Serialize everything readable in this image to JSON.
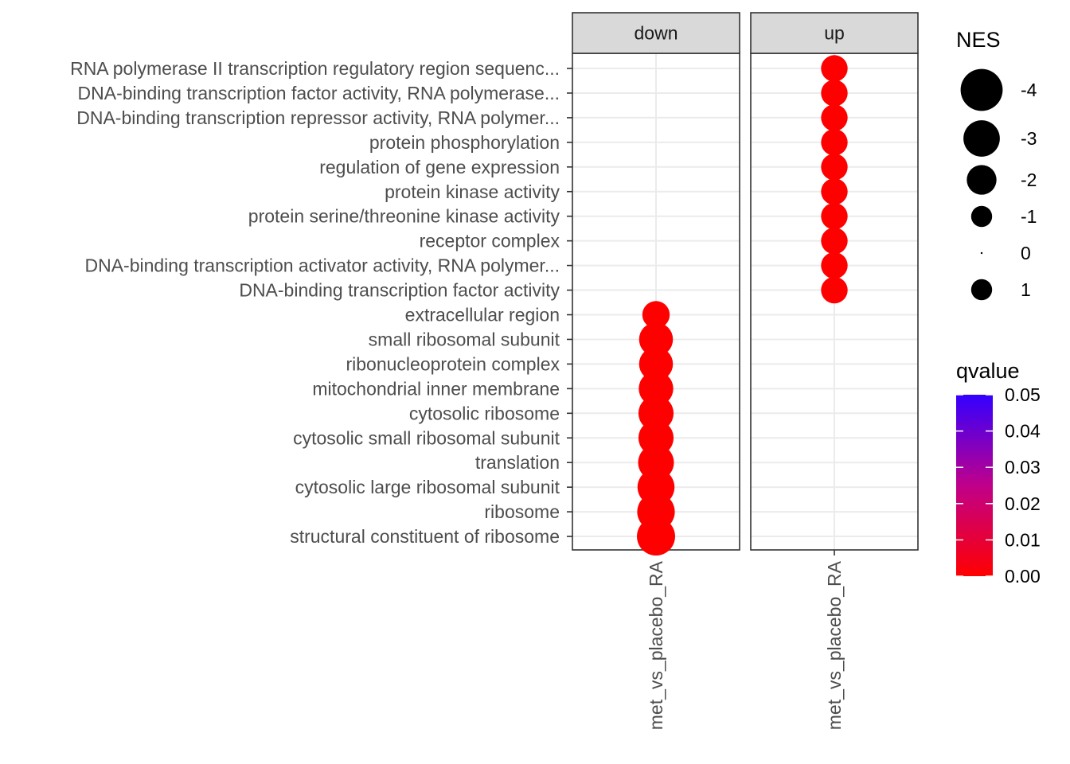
{
  "chart_data": {
    "type": "scatter",
    "facets": [
      "down",
      "up"
    ],
    "x_categories": [
      "met_vs_placebo_RA"
    ],
    "y_categories": [
      "RNA polymerase II transcription regulatory region sequenc...",
      "DNA-binding transcription factor activity, RNA polymerase...",
      "DNA-binding transcription repressor activity, RNA polymer...",
      "protein phosphorylation",
      "regulation of gene expression",
      "protein kinase activity",
      "protein serine/threonine kinase activity",
      "receptor complex",
      "DNA-binding transcription activator activity, RNA polymer...",
      "DNA-binding transcription factor activity",
      "extracellular region",
      "small ribosomal subunit",
      "ribonucleoprotein complex",
      "mitochondrial inner membrane",
      "cytosolic ribosome",
      "cytosolic small ribosomal subunit",
      "translation",
      "cytosolic large ribosomal subunit",
      "ribosome",
      "structural constituent of ribosome"
    ],
    "points": [
      {
        "facet": "up",
        "term": "RNA polymerase II transcription regulatory region sequenc...",
        "x": "met_vs_placebo_RA",
        "nes": 1.6,
        "qvalue": 0.0
      },
      {
        "facet": "up",
        "term": "DNA-binding transcription factor activity, RNA polymerase...",
        "x": "met_vs_placebo_RA",
        "nes": 1.6,
        "qvalue": 0.0
      },
      {
        "facet": "up",
        "term": "DNA-binding transcription repressor activity, RNA polymer...",
        "x": "met_vs_placebo_RA",
        "nes": 1.6,
        "qvalue": 0.0
      },
      {
        "facet": "up",
        "term": "protein phosphorylation",
        "x": "met_vs_placebo_RA",
        "nes": 1.6,
        "qvalue": 0.0
      },
      {
        "facet": "up",
        "term": "regulation of gene expression",
        "x": "met_vs_placebo_RA",
        "nes": 1.6,
        "qvalue": 0.0
      },
      {
        "facet": "up",
        "term": "protein kinase activity",
        "x": "met_vs_placebo_RA",
        "nes": 1.6,
        "qvalue": 0.0
      },
      {
        "facet": "up",
        "term": "protein serine/threonine kinase activity",
        "x": "met_vs_placebo_RA",
        "nes": 1.6,
        "qvalue": 0.0
      },
      {
        "facet": "up",
        "term": "receptor complex",
        "x": "met_vs_placebo_RA",
        "nes": 1.6,
        "qvalue": 0.0
      },
      {
        "facet": "up",
        "term": "DNA-binding transcription activator activity, RNA polymer...",
        "x": "met_vs_placebo_RA",
        "nes": 1.6,
        "qvalue": 0.0
      },
      {
        "facet": "up",
        "term": "DNA-binding transcription factor activity",
        "x": "met_vs_placebo_RA",
        "nes": 1.6,
        "qvalue": 0.0
      },
      {
        "facet": "down",
        "term": "extracellular region",
        "x": "met_vs_placebo_RA",
        "nes": -1.7,
        "qvalue": 0.0
      },
      {
        "facet": "down",
        "term": "small ribosomal subunit",
        "x": "met_vs_placebo_RA",
        "nes": -2.6,
        "qvalue": 0.0
      },
      {
        "facet": "down",
        "term": "ribonucleoprotein complex",
        "x": "met_vs_placebo_RA",
        "nes": -2.6,
        "qvalue": 0.0
      },
      {
        "facet": "down",
        "term": "mitochondrial inner membrane",
        "x": "met_vs_placebo_RA",
        "nes": -2.7,
        "qvalue": 0.0
      },
      {
        "facet": "down",
        "term": "cytosolic ribosome",
        "x": "met_vs_placebo_RA",
        "nes": -2.8,
        "qvalue": 0.0
      },
      {
        "facet": "down",
        "term": "cytosolic small ribosomal subunit",
        "x": "met_vs_placebo_RA",
        "nes": -2.8,
        "qvalue": 0.0
      },
      {
        "facet": "down",
        "term": "translation",
        "x": "met_vs_placebo_RA",
        "nes": -2.9,
        "qvalue": 0.0
      },
      {
        "facet": "down",
        "term": "cytosolic large ribosomal subunit",
        "x": "met_vs_placebo_RA",
        "nes": -3.1,
        "qvalue": 0.0
      },
      {
        "facet": "down",
        "term": "ribosome",
        "x": "met_vs_placebo_RA",
        "nes": -3.2,
        "qvalue": 0.0
      },
      {
        "facet": "down",
        "term": "structural constituent of ribosome",
        "x": "met_vs_placebo_RA",
        "nes": -3.3,
        "qvalue": 0.0
      }
    ],
    "size_legend": {
      "title": "NES",
      "entries": [
        {
          "label": "-4",
          "value": -4
        },
        {
          "label": "-3",
          "value": -3
        },
        {
          "label": "-2",
          "value": -2
        },
        {
          "label": "-1",
          "value": -1
        },
        {
          "label": "0",
          "value": 0
        },
        {
          "label": "1",
          "value": 1
        }
      ]
    },
    "color_legend": {
      "title": "qvalue",
      "range": [
        0.0,
        0.05
      ],
      "ticks": [
        "0.05",
        "0.04",
        "0.03",
        "0.02",
        "0.01",
        "0.00"
      ],
      "low_color": "#ff0000",
      "high_color": "#0000ff"
    },
    "point_color": "#ff0000",
    "panel_border_color": "#333333",
    "strip_fill": "#d9d9d9",
    "grid": true,
    "legend_position": "right"
  }
}
